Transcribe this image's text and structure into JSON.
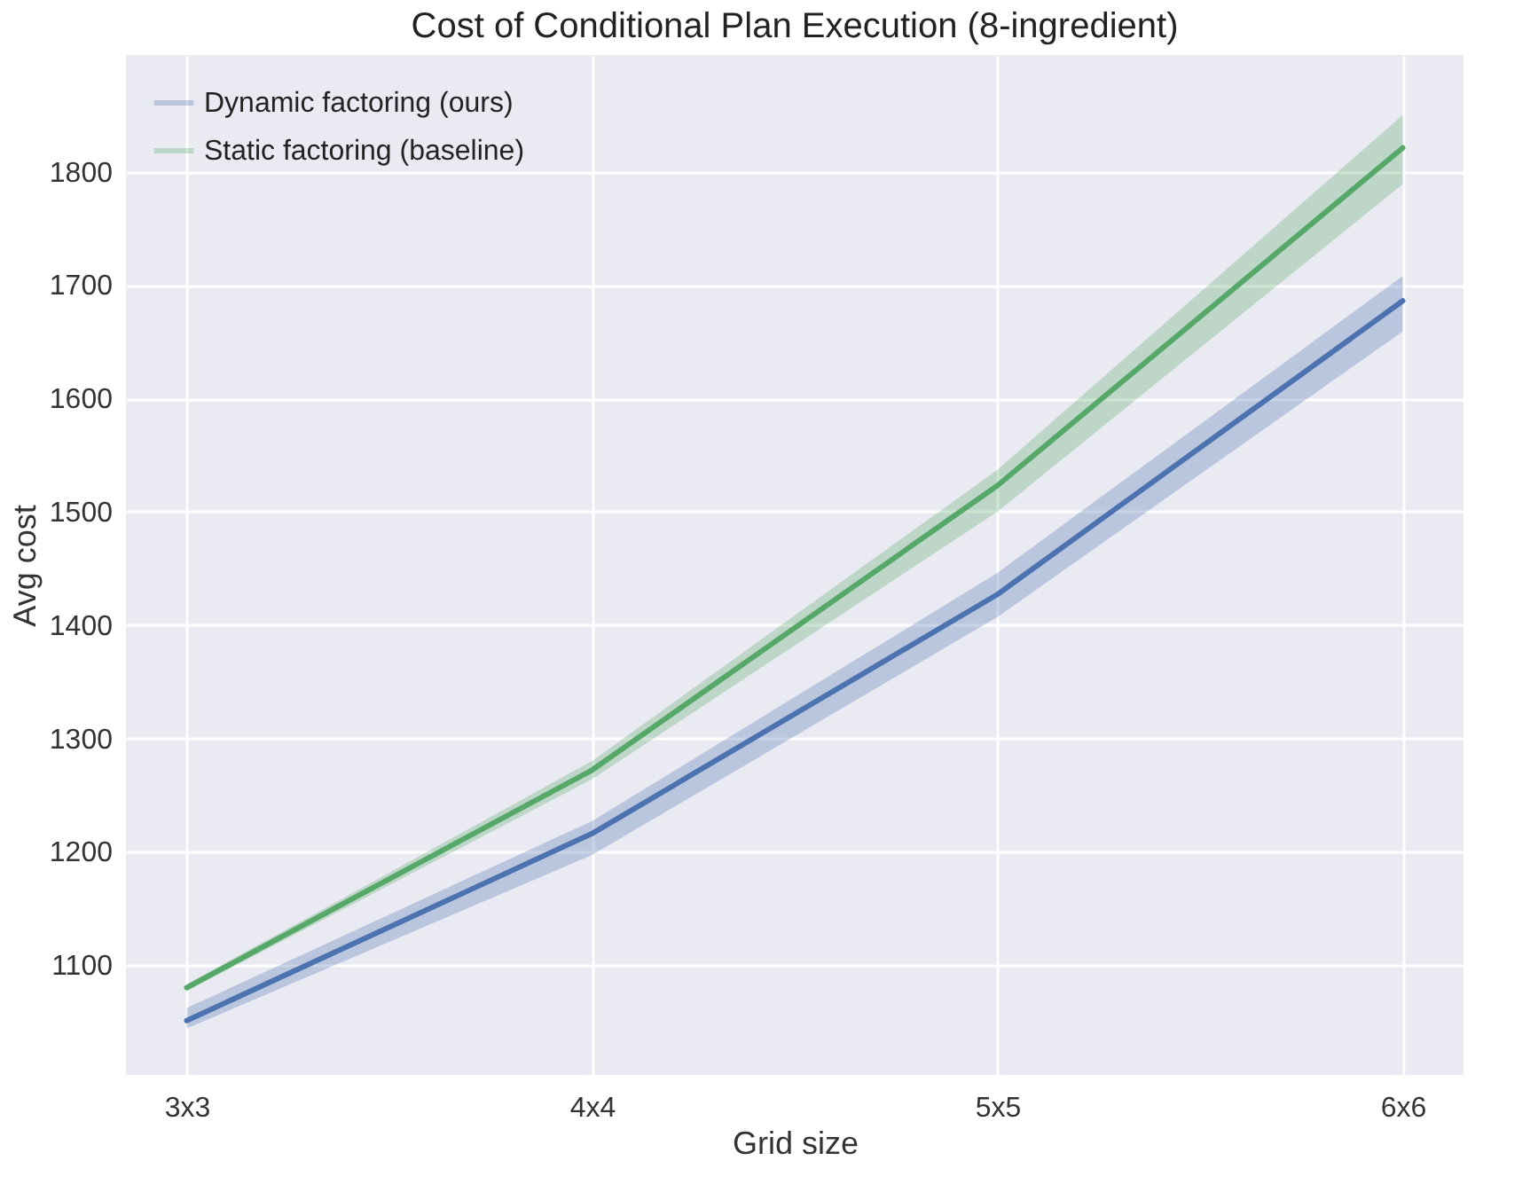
{
  "chart_data": {
    "type": "line",
    "title": "Cost of Conditional Plan Execution (8-ingredient)",
    "xlabel": "Grid size",
    "ylabel": "Avg cost",
    "categories": [
      "3x3",
      "4x4",
      "5x5",
      "6x6"
    ],
    "series": [
      {
        "name": "Dynamic factoring (ours)",
        "color": "#4c72b0",
        "values": [
          1051,
          1216,
          1427,
          1686
        ],
        "lower": [
          1044,
          1197,
          1407,
          1659
        ],
        "upper": [
          1062,
          1227,
          1446,
          1708
        ]
      },
      {
        "name": "Static factoring (baseline)",
        "color": "#55a868",
        "values": [
          1080,
          1272,
          1523,
          1821
        ],
        "lower": [
          1077,
          1264,
          1500,
          1789
        ],
        "upper": [
          1083,
          1280,
          1537,
          1850
        ]
      }
    ],
    "ylim": [
      1003,
      1903
    ],
    "yticks": [
      1100,
      1200,
      1300,
      1400,
      1500,
      1600,
      1700,
      1800
    ],
    "grid": true,
    "legend": "top left",
    "line_style": "solid"
  }
}
